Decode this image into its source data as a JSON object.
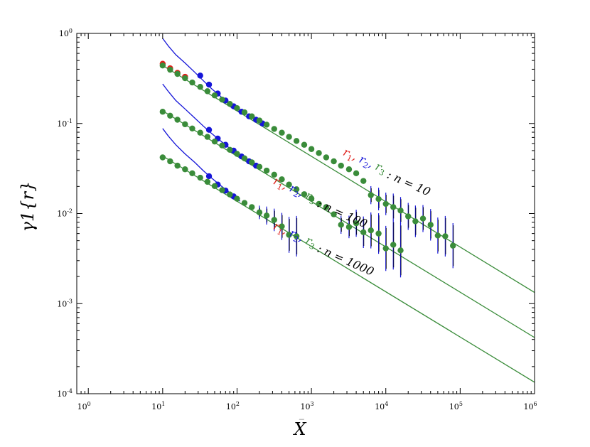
{
  "chart_data": {
    "type": "scatter",
    "title": "",
    "xlabel": "X̄",
    "ylabel": "γ1{r}",
    "x_scale": "log",
    "y_scale": "log",
    "xlim": [
      0.7,
      1000000
    ],
    "ylim": [
      0.0001,
      1
    ],
    "x_ticks": [
      {
        "v": 1,
        "base": "10",
        "exp": "0"
      },
      {
        "v": 10,
        "base": "10",
        "exp": "1"
      },
      {
        "v": 100,
        "base": "10",
        "exp": "2"
      },
      {
        "v": 1000,
        "base": "10",
        "exp": "3"
      },
      {
        "v": 10000,
        "base": "10",
        "exp": "4"
      },
      {
        "v": 100000,
        "base": "10",
        "exp": "5"
      },
      {
        "v": 1000000,
        "base": "10",
        "exp": "6"
      }
    ],
    "y_ticks": [
      {
        "v": 0.0001,
        "base": "10",
        "exp": "-4"
      },
      {
        "v": 0.001,
        "base": "10",
        "exp": "-3"
      },
      {
        "v": 0.01,
        "base": "10",
        "exp": "-2"
      },
      {
        "v": 0.1,
        "base": "10",
        "exp": "-1"
      },
      {
        "v": 1,
        "base": "10",
        "exp": "0"
      }
    ],
    "grid": false,
    "legend": "none",
    "colors": {
      "r1": "#e0201b",
      "r2": "#1515d8",
      "r3": "#3a8c3a",
      "fit_line": "#3a8c3a",
      "theory_curve": "#1515d8"
    },
    "fit_lines": [
      {
        "group": "n10",
        "x": [
          10,
          1000000
        ],
        "y": [
          0.44,
          0.00133
        ]
      },
      {
        "group": "n100",
        "x": [
          10,
          1000000
        ],
        "y": [
          0.138,
          0.00042
        ]
      },
      {
        "group": "n1000",
        "x": [
          10,
          1000000
        ],
        "y": [
          0.0435,
          0.000134
        ]
      }
    ],
    "theory_curves": [
      {
        "group": "n10",
        "x": [
          10,
          12,
          15,
          20,
          27,
          35,
          45,
          60,
          80,
          110
        ],
        "y": [
          0.88,
          0.72,
          0.58,
          0.47,
          0.37,
          0.3,
          0.245,
          0.2,
          0.165,
          0.132
        ]
      },
      {
        "group": "n100",
        "x": [
          10,
          12,
          15,
          20,
          27,
          35,
          45,
          60,
          80,
          110
        ],
        "y": [
          0.275,
          0.225,
          0.18,
          0.145,
          0.115,
          0.094,
          0.078,
          0.064,
          0.053,
          0.043
        ]
      },
      {
        "group": "n1000",
        "x": [
          10,
          12,
          15,
          20,
          27,
          35,
          45,
          60,
          80,
          110
        ],
        "y": [
          0.088,
          0.072,
          0.058,
          0.046,
          0.037,
          0.03,
          0.025,
          0.0205,
          0.017,
          0.0137
        ]
      }
    ],
    "series": [
      {
        "id": "r1",
        "group": "n10",
        "color": "#e0201b",
        "x": [
          10,
          12.6,
          15.8,
          20
        ],
        "y": [
          0.46,
          0.41,
          0.365,
          0.33
        ]
      },
      {
        "id": "r2",
        "group": "n10",
        "color": "#1515d8",
        "x": [
          32,
          42,
          55,
          70,
          90,
          115,
          145,
          180,
          220
        ],
        "y": [
          0.34,
          0.27,
          0.215,
          0.18,
          0.155,
          0.135,
          0.12,
          0.11,
          0.1
        ]
      },
      {
        "id": "r3",
        "group": "n10",
        "color": "#3a8c3a",
        "x": [
          10,
          12.6,
          15.8,
          20,
          25,
          32,
          40,
          50,
          63,
          80,
          100,
          126,
          158,
          200,
          250,
          316,
          400,
          500,
          630,
          800,
          1000,
          1260,
          1580,
          2000,
          2500,
          3200,
          4000,
          5000,
          6300,
          8000,
          10000,
          12600,
          15800,
          20000,
          25000,
          31600,
          40000,
          50000,
          63000,
          80000
        ],
        "y": [
          0.44,
          0.395,
          0.355,
          0.318,
          0.285,
          0.255,
          0.228,
          0.205,
          0.184,
          0.165,
          0.148,
          0.133,
          0.12,
          0.108,
          0.097,
          0.087,
          0.079,
          0.071,
          0.064,
          0.058,
          0.052,
          0.047,
          0.042,
          0.038,
          0.034,
          0.031,
          0.028,
          0.023,
          0.016,
          0.0145,
          0.0128,
          0.0118,
          0.0108,
          0.0093,
          0.0082,
          0.0088,
          0.0075,
          0.0057,
          0.0056,
          0.0044
        ],
        "err": [
          0,
          0,
          0,
          0,
          0,
          0,
          0,
          0,
          0,
          0,
          0,
          0,
          0,
          0,
          0,
          0,
          0,
          0,
          0,
          0,
          0,
          0,
          0,
          0,
          0,
          0,
          0,
          0,
          0.2,
          0.25,
          0.25,
          0.3,
          0.3,
          0.3,
          0.35,
          0.3,
          0.35,
          0.4,
          0.45,
          0.5
        ]
      },
      {
        "id": "r2",
        "group": "n100",
        "color": "#1515d8",
        "x": [
          42,
          55,
          70,
          90,
          115,
          145,
          180
        ],
        "y": [
          0.085,
          0.068,
          0.058,
          0.05,
          0.043,
          0.038,
          0.034
        ]
      },
      {
        "id": "r3",
        "group": "n100",
        "color": "#3a8c3a",
        "x": [
          10,
          12.6,
          15.8,
          20,
          25,
          32,
          40,
          50,
          63,
          80,
          100,
          126,
          158,
          200,
          250,
          316,
          400,
          500,
          630,
          800,
          1000,
          1260,
          1580,
          2000,
          2500,
          3200,
          4000,
          5000,
          6300,
          8000,
          10000,
          12600,
          15800
        ],
        "y": [
          0.135,
          0.122,
          0.11,
          0.098,
          0.088,
          0.079,
          0.071,
          0.063,
          0.057,
          0.051,
          0.046,
          0.041,
          0.037,
          0.033,
          0.03,
          0.027,
          0.024,
          0.021,
          0.0186,
          0.0164,
          0.0147,
          0.0128,
          0.0118,
          0.0098,
          0.0075,
          0.0071,
          0.0078,
          0.0062,
          0.0065,
          0.006,
          0.0041,
          0.0045,
          0.0039
        ],
        "err": [
          0,
          0,
          0,
          0,
          0,
          0,
          0,
          0,
          0,
          0,
          0,
          0,
          0,
          0,
          0,
          0,
          0,
          0,
          0,
          0,
          0,
          0,
          0,
          0,
          0.2,
          0.25,
          0.3,
          0.35,
          0.4,
          0.45,
          0.5,
          0.55,
          0.6
        ]
      },
      {
        "id": "r2",
        "group": "n1000",
        "color": "#1515d8",
        "x": [
          42,
          55,
          70,
          90
        ],
        "y": [
          0.026,
          0.021,
          0.018,
          0.0155
        ]
      },
      {
        "id": "r3",
        "group": "n1000",
        "color": "#3a8c3a",
        "x": [
          10,
          12.6,
          15.8,
          20,
          25,
          32,
          40,
          50,
          63,
          80,
          100,
          126,
          158,
          200,
          250,
          316,
          400,
          500,
          630
        ],
        "y": [
          0.042,
          0.038,
          0.034,
          0.031,
          0.028,
          0.025,
          0.0225,
          0.0202,
          0.0182,
          0.0163,
          0.0146,
          0.0131,
          0.0118,
          0.0103,
          0.0095,
          0.0085,
          0.0072,
          0.0058,
          0.0056
        ],
        "err": [
          0,
          0,
          0,
          0,
          0,
          0,
          0,
          0,
          0,
          0,
          0,
          0,
          0,
          0.15,
          0.2,
          0.25,
          0.3,
          0.4,
          0.45
        ]
      }
    ],
    "annotations": [
      {
        "group": "n10",
        "parts": [
          {
            "text": "r",
            "sub": "1",
            "sep": ", ",
            "color": "#e0201b"
          },
          {
            "text": "r",
            "sub": "2",
            "sep": ", ",
            "color": "#1515d8"
          },
          {
            "text": "r",
            "sub": "3",
            "sep": "",
            "color": "#3a8c3a"
          },
          {
            "text": " : n = 10",
            "sub": "",
            "sep": "",
            "color": "#000000"
          }
        ],
        "anchor": {
          "x": 2600,
          "y": 0.045
        },
        "angle_deg": 24
      },
      {
        "group": "n100",
        "parts": [
          {
            "text": "r",
            "sub": "1",
            "sep": ", ",
            "color": "#e0201b"
          },
          {
            "text": "r",
            "sub": "2",
            "sep": ", ",
            "color": "#1515d8"
          },
          {
            "text": "r",
            "sub": "3",
            "sep": "",
            "color": "#3a8c3a"
          },
          {
            "text": " : n = 100",
            "sub": "",
            "sep": "",
            "color": "#000000"
          }
        ],
        "anchor": {
          "x": 300,
          "y": 0.0215
        },
        "angle_deg": 24
      },
      {
        "group": "n1000",
        "parts": [
          {
            "text": "r",
            "sub": "1",
            "sep": ", ",
            "color": "#e0201b"
          },
          {
            "text": "r",
            "sub": "2",
            "sep": ", ",
            "color": "#1515d8"
          },
          {
            "text": "r",
            "sub": "3",
            "sep": "",
            "color": "#3a8c3a"
          },
          {
            "text": " : n = 1000",
            "sub": "",
            "sep": "",
            "color": "#000000"
          }
        ],
        "anchor": {
          "x": 300,
          "y": 0.0068
        },
        "angle_deg": 24
      }
    ]
  }
}
